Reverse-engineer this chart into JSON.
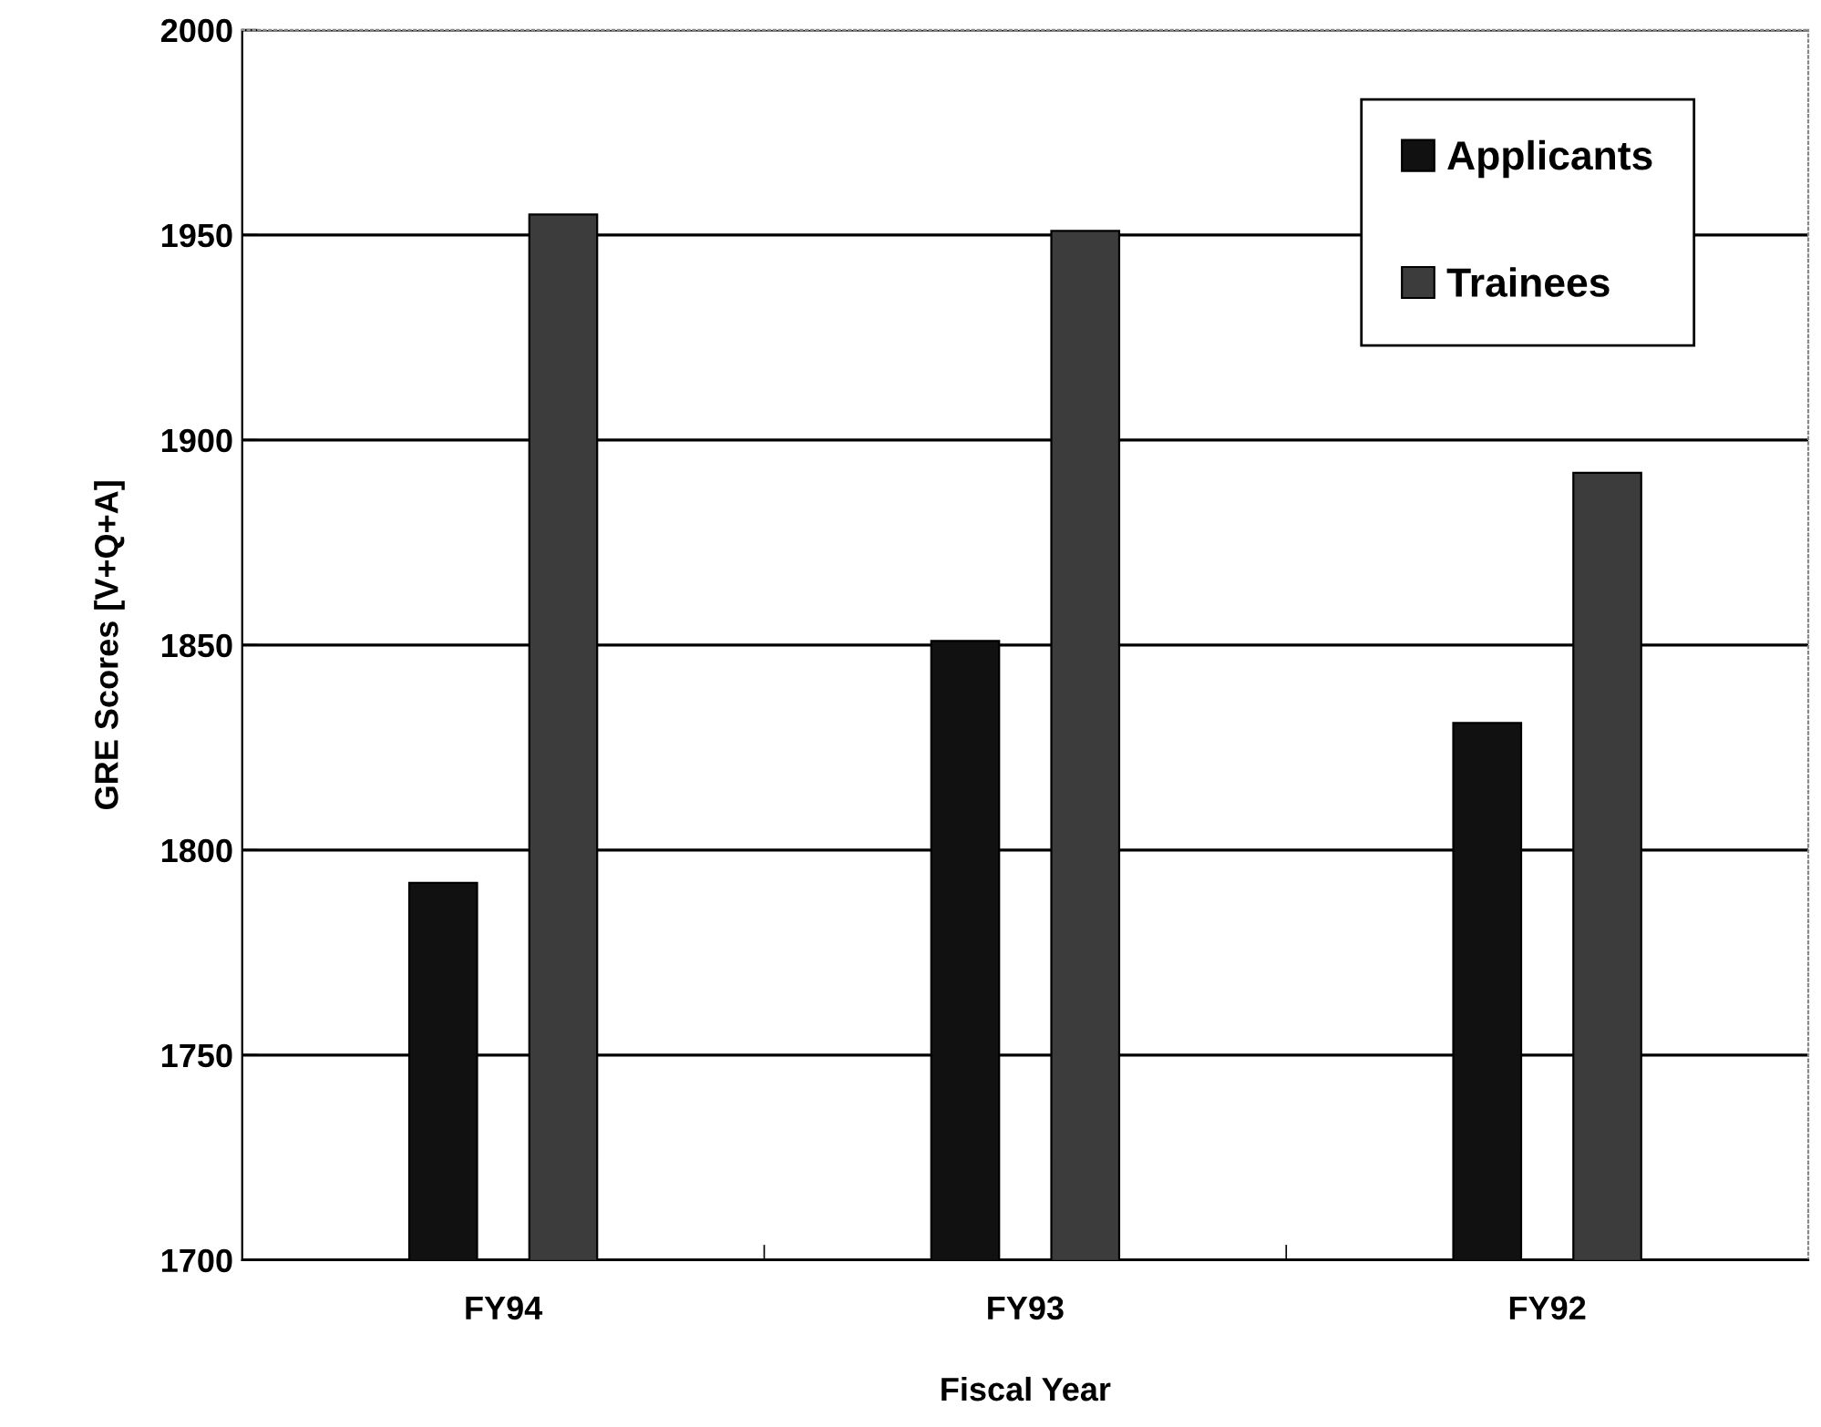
{
  "chart_data": {
    "type": "bar",
    "xlabel": "Fiscal Year",
    "ylabel": "GRE Scores [V+Q+A]",
    "categories": [
      "FY94",
      "FY93",
      "FY92"
    ],
    "series": [
      {
        "name": "Applicants",
        "color": "#111111",
        "values": [
          1792,
          1851,
          1831
        ]
      },
      {
        "name": "Trainees",
        "color": "#3c3c3c",
        "values": [
          1955,
          1951,
          1892
        ]
      }
    ],
    "ylim": [
      1700,
      2000
    ],
    "yticks": [
      1700,
      1750,
      1800,
      1850,
      1900,
      1950,
      2000
    ],
    "grid": "y",
    "legend": "top right"
  }
}
